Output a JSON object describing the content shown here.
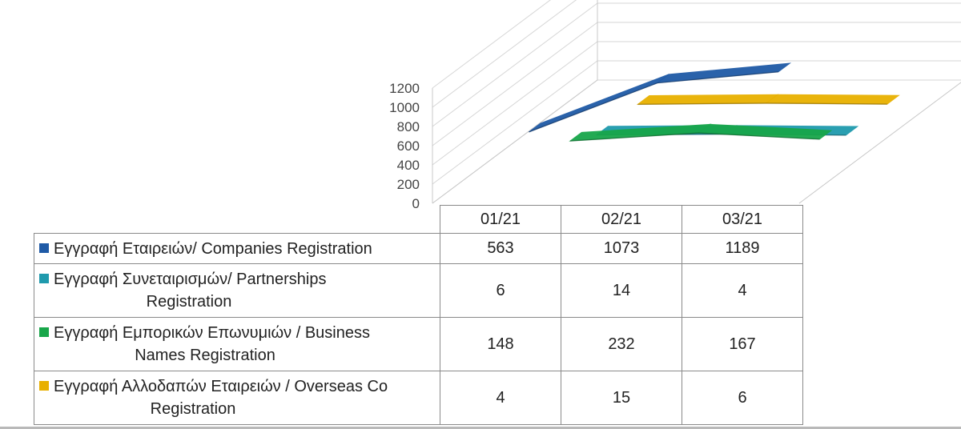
{
  "chart_data": {
    "type": "line",
    "subtype": "3d-ribbon-with-data-table",
    "categories": [
      "01/21",
      "02/21",
      "03/21"
    ],
    "y_ticks": [
      "1200",
      "1000",
      "800",
      "600",
      "400",
      "200",
      "0"
    ],
    "ylim": [
      0,
      1200
    ],
    "grid": true,
    "series": [
      {
        "name": "Εγγραφή Εταιρειών/ Companies Registration",
        "color": "#1f5aa6",
        "values": [
          563,
          1073,
          1189
        ]
      },
      {
        "name": "Εγγραφή Συνεταιρισμών/ Partnerships Registration",
        "color": "#1f9aad",
        "values": [
          6,
          14,
          4
        ]
      },
      {
        "name": "Εγγραφή Εμπορικών Επωνυμιών / Business Names Registration",
        "color": "#18a64a",
        "values": [
          148,
          232,
          167
        ]
      },
      {
        "name": "Εγγραφή Αλλοδαπών Εταιρειών / Overseas Co Registration",
        "color": "#e8b000",
        "values": [
          4,
          15,
          6
        ]
      }
    ],
    "title": "",
    "xlabel": "",
    "ylabel": ""
  },
  "table": {
    "header": [
      "01/21",
      "02/21",
      "03/21"
    ],
    "rows": [
      {
        "label_line1": "Εγγραφή Εταιρειών/ Companies Registration",
        "label_line2": "",
        "color": "#1f5aa6",
        "cells": [
          "563",
          "1073",
          "1189"
        ]
      },
      {
        "label_line1": "Εγγραφή Συνεταιρισμών/ Partnerships",
        "label_line2": "Registration",
        "color": "#1f9aad",
        "cells": [
          "6",
          "14",
          "4"
        ]
      },
      {
        "label_line1": "Εγγραφή Εμπορικών Επωνυμιών / Business",
        "label_line2": "Names Registration",
        "color": "#18a64a",
        "cells": [
          "148",
          "232",
          "167"
        ]
      },
      {
        "label_line1": "Εγγραφή Αλλοδαπών Εταιρειών / Overseas Co",
        "label_line2": "Registration",
        "color": "#e8b000",
        "cells": [
          "4",
          "15",
          "6"
        ]
      }
    ]
  }
}
